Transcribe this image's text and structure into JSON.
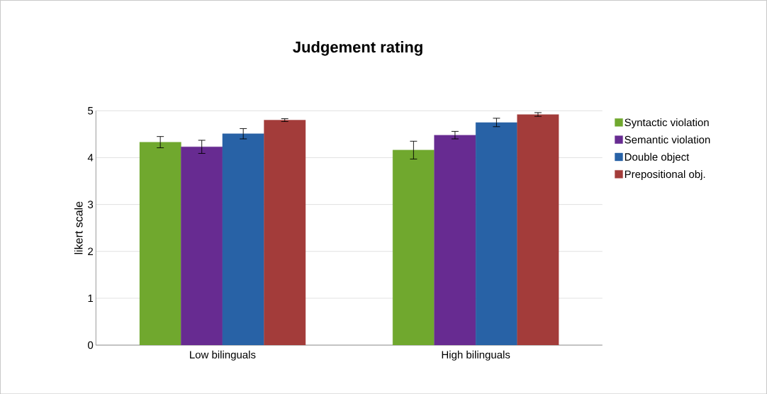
{
  "chart_data": {
    "type": "bar",
    "title": "Judgement rating",
    "ylabel": "likert scale",
    "categories": [
      "Low bilinguals",
      "High bilinguals"
    ],
    "series": [
      {
        "name": "Syntactic violation",
        "color": "#70a82e",
        "values": [
          4.33,
          4.16
        ],
        "errors": [
          0.12,
          0.19
        ]
      },
      {
        "name": "Semantic violation",
        "color": "#672b91",
        "values": [
          4.23,
          4.48
        ],
        "errors": [
          0.14,
          0.08
        ]
      },
      {
        "name": "Double object",
        "color": "#2862a6",
        "values": [
          4.51,
          4.75
        ],
        "errors": [
          0.11,
          0.09
        ]
      },
      {
        "name": "Prepositional obj.",
        "color": "#a33c3a",
        "values": [
          4.8,
          4.92
        ],
        "errors": [
          0.03,
          0.04
        ]
      }
    ],
    "ylim": [
      0,
      5
    ],
    "yticks": [
      0,
      1,
      2,
      3,
      4,
      5
    ],
    "grid": "y",
    "legend": "right"
  }
}
